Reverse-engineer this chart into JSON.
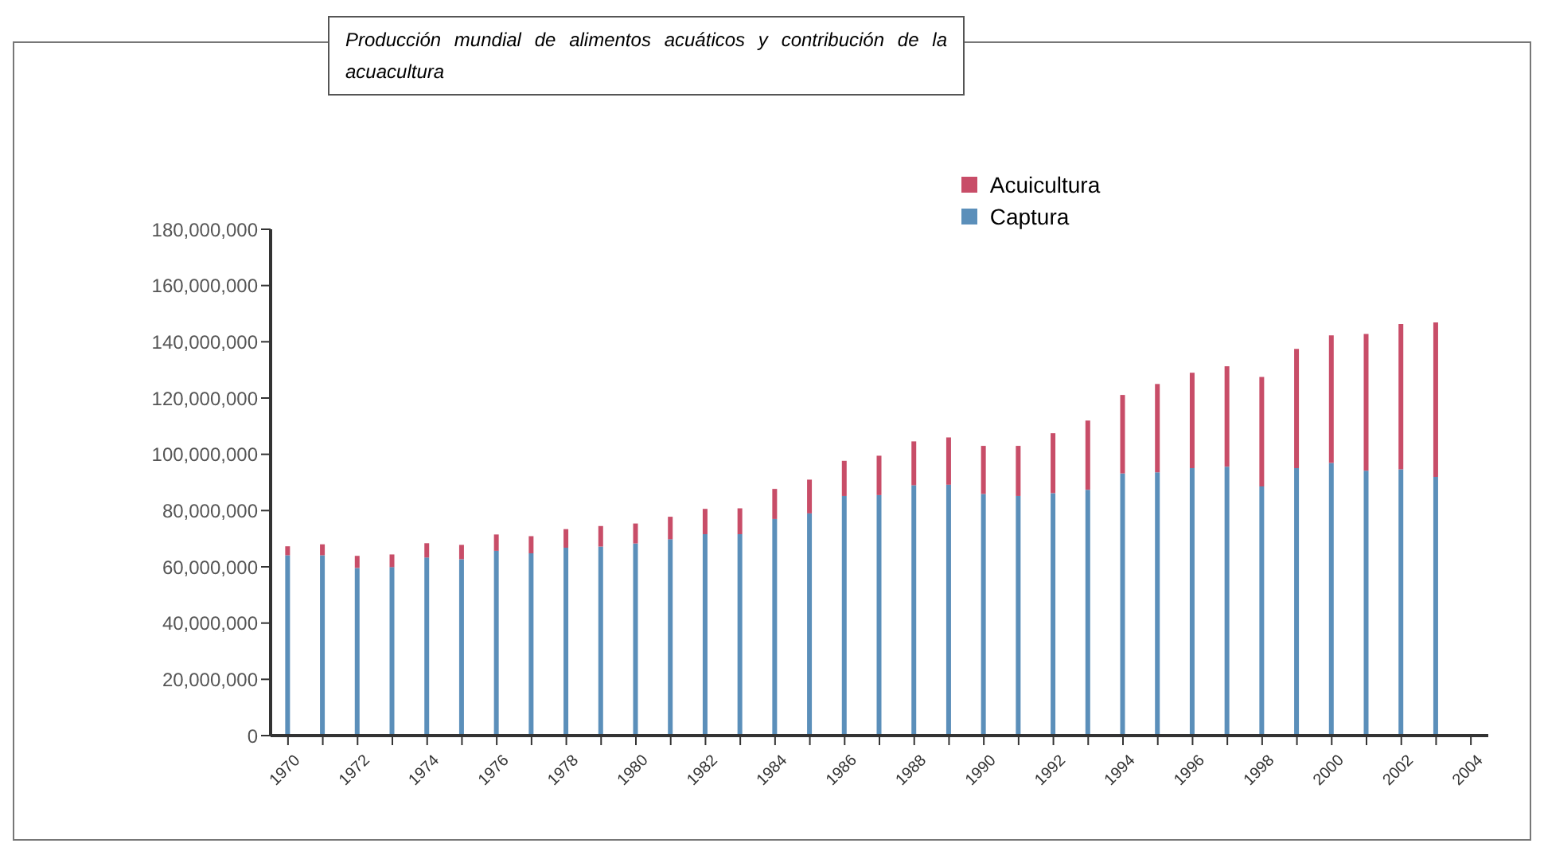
{
  "chart_data": {
    "type": "bar",
    "title": "Producción mundial de alimentos acuáticos y contribución de la acuacultura",
    "stacked": true,
    "legend": "top",
    "grid": false,
    "categories": [
      "1970",
      null,
      "1972",
      null,
      "1974",
      null,
      "1976",
      null,
      "1978",
      null,
      "1980",
      null,
      "1982",
      null,
      "1984",
      null,
      "1986",
      null,
      "1988",
      null,
      "1990",
      null,
      "1992",
      null,
      "1994",
      null,
      "1996",
      null,
      "1998",
      null,
      "2000",
      null,
      "2002",
      null,
      "2004"
    ],
    "series": [
      {
        "name": "Captura",
        "color": "#5b8fba",
        "values": [
          64100000,
          64100000,
          59600000,
          59900000,
          63300000,
          62700000,
          65700000,
          64800000,
          66800000,
          67200000,
          68300000,
          69800000,
          71600000,
          71600000,
          77000000,
          79000000,
          85200000,
          85500000,
          89000000,
          89200000,
          85900000,
          85200000,
          86200000,
          87400000,
          93200000,
          93600000,
          95100000,
          95600000,
          88600000,
          95100000,
          96900000,
          94200000,
          94700000,
          92000000,
          null
        ]
      },
      {
        "name": "Acuicultura",
        "color": "#c84d68",
        "values": [
          3200000,
          3900000,
          4300000,
          4500000,
          5100000,
          5100000,
          5800000,
          6100000,
          6600000,
          7300000,
          7100000,
          8000000,
          9000000,
          9200000,
          10700000,
          12000000,
          12500000,
          14000000,
          15600000,
          16800000,
          17100000,
          17800000,
          21300000,
          24600000,
          27900000,
          31400000,
          33900000,
          35700000,
          38900000,
          42400000,
          45400000,
          48600000,
          51600000,
          54900000,
          null
        ]
      }
    ],
    "ylim": [
      0,
      180000000
    ],
    "yticks": [
      0,
      {
        "value": 20000000,
        "label": "20,000,000"
      },
      {
        "value": 40000000,
        "label": "40,000,000"
      },
      {
        "value": 60000000,
        "label": "60,000,000"
      },
      {
        "value": 80000000,
        "label": "80,000,000"
      },
      {
        "value": 100000000,
        "label": "100,000,000"
      },
      {
        "value": 120000000,
        "label": "120,000,000"
      },
      {
        "value": 140000000,
        "label": "140,000,000"
      },
      {
        "value": 160000000,
        "label": "160,000,000"
      },
      {
        "value": 180000000,
        "label": "180,000,000"
      }
    ]
  }
}
